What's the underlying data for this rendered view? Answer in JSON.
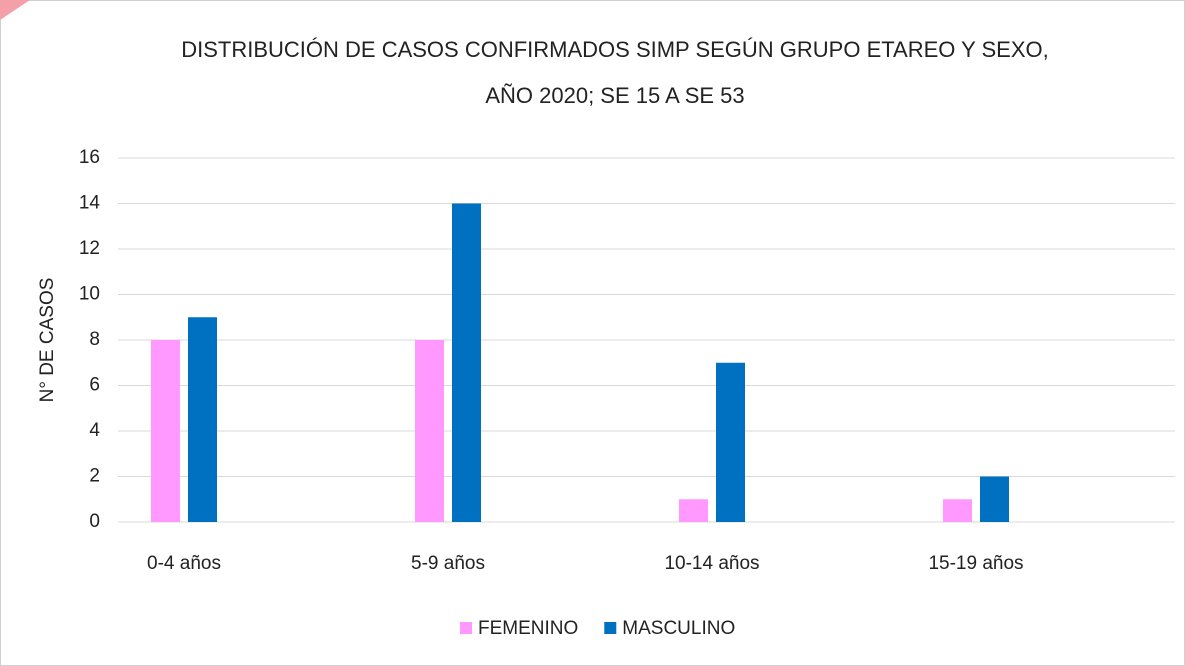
{
  "chart_data": {
    "type": "bar",
    "title": [
      "DISTRIBUCIÓN DE CASOS CONFIRMADOS SIMP SEGÚN GRUPO ETAREO Y SEXO,",
      "AÑO 2020; SE 15 A SE 53"
    ],
    "y_label": "N° DE CASOS",
    "categories": [
      "0-4 años",
      "5-9 años",
      "10-14 años",
      "15-19 años"
    ],
    "series": [
      {
        "name": "FEMENINO",
        "color": "#ff99ff",
        "values": [
          8,
          8,
          1,
          1
        ]
      },
      {
        "name": "MASCULINO",
        "color": "#0070c0",
        "values": [
          9,
          14,
          7,
          2
        ]
      }
    ],
    "ylim": [
      0,
      16
    ],
    "yticks": [
      0,
      2,
      4,
      6,
      8,
      10,
      12,
      14,
      16
    ],
    "grid": true,
    "legend": "bottom"
  }
}
